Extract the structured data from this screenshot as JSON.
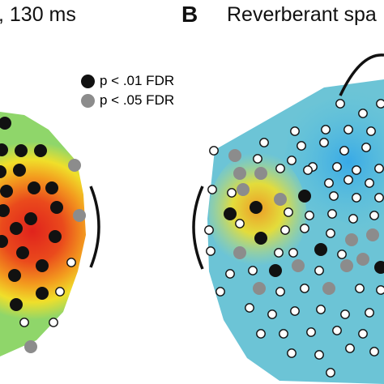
{
  "panel_a": {
    "title": ", 130 ms"
  },
  "panel_b": {
    "letter": "B",
    "title": "Reverberant spa"
  },
  "legend": {
    "items": [
      {
        "label": "p < .01 FDR",
        "color": "#111111"
      },
      {
        "label": "p < .05 FDR",
        "color": "#8c8c8c"
      }
    ]
  },
  "colors": {
    "cold": "#4fb8de",
    "mid": "#8fd6c6",
    "warm_yellow": "#f0df2a",
    "warm_orange": "#f39a1e",
    "hot": "#e0231c",
    "sig_01": "#111111",
    "sig_05": "#8c8c8c",
    "nonsig_fill": "#ffffff"
  },
  "electrode_categories": [
    "p < .01 FDR",
    "p < .05 FDR",
    "not significant"
  ]
}
